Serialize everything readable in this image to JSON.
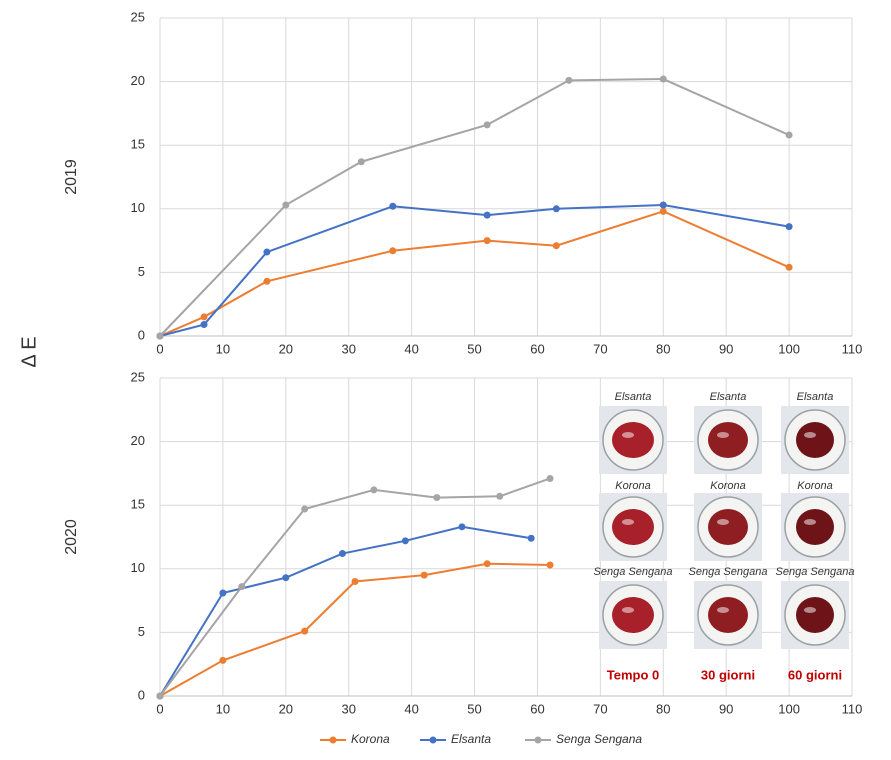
{
  "chart_data": [
    {
      "type": "line",
      "subtitle": "2019",
      "ylabel": "Δ E",
      "xlim": [
        0,
        110
      ],
      "xticks": [
        0,
        10,
        20,
        30,
        40,
        50,
        60,
        70,
        80,
        90,
        100,
        110
      ],
      "ylim": [
        0,
        25
      ],
      "yticks": [
        0,
        5,
        10,
        15,
        20,
        25
      ],
      "grid": true,
      "legend": "bottom",
      "series": [
        {
          "name": "Korona",
          "color": "#ed7d31",
          "x": [
            0,
            7,
            17,
            37,
            52,
            63,
            80,
            100
          ],
          "values": [
            0,
            1.5,
            4.3,
            6.7,
            7.5,
            7.1,
            9.8,
            5.4
          ]
        },
        {
          "name": "Elsanta",
          "color": "#4472c4",
          "x": [
            0,
            7,
            17,
            37,
            52,
            63,
            80,
            100
          ],
          "values": [
            0,
            0.9,
            6.6,
            10.2,
            9.5,
            10.0,
            10.3,
            8.6
          ]
        },
        {
          "name": "Senga Sengana",
          "color": "#a5a5a5",
          "x": [
            0,
            20,
            32,
            52,
            65,
            80,
            100
          ],
          "values": [
            0,
            10.3,
            13.7,
            16.6,
            20.1,
            20.2,
            15.8
          ]
        }
      ]
    },
    {
      "type": "line",
      "subtitle": "2020",
      "xlim": [
        0,
        110
      ],
      "xticks": [
        0,
        10,
        20,
        30,
        40,
        50,
        60,
        70,
        80,
        90,
        100,
        110
      ],
      "ylim": [
        0,
        25
      ],
      "yticks": [
        0,
        5,
        10,
        15,
        20,
        25
      ],
      "grid": true,
      "series": [
        {
          "color": "#ed7d31",
          "x": [
            0,
            10,
            23,
            31,
            42,
            52,
            62
          ],
          "values": [
            0,
            2.8,
            5.1,
            9.0,
            9.5,
            10.4,
            10.3
          ]
        },
        {
          "color": "#4472c4",
          "x": [
            0,
            10,
            20,
            29,
            39,
            48,
            59
          ],
          "values": [
            0,
            8.1,
            9.3,
            11.2,
            12.2,
            13.3,
            12.4
          ]
        },
        {
          "color": "#a5a5a5",
          "x": [
            0,
            13,
            23,
            34,
            44,
            54,
            62
          ],
          "values": [
            0,
            8.6,
            14.7,
            16.2,
            15.6,
            15.7,
            17.1
          ]
        }
      ]
    }
  ],
  "inset": {
    "columns": [
      {
        "label": "Tempo 0",
        "rows": [
          "Elsanta",
          "Korona",
          "Senga Sengana"
        ]
      },
      {
        "label": "30 giorni",
        "rows": [
          "Elsanta",
          "Korona",
          "Senga Sengana"
        ]
      },
      {
        "label": "60 giorni",
        "rows": [
          "Elsanta",
          "Korona",
          "Senga Sengana"
        ]
      }
    ]
  }
}
